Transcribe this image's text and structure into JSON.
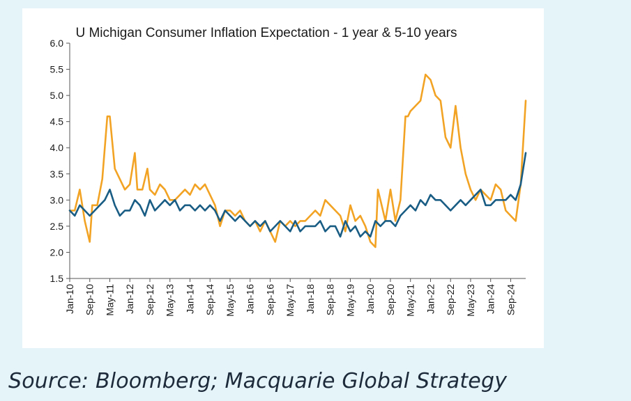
{
  "chart_data": {
    "type": "line",
    "title": "U Michigan Consumer Inflation Expectation - 1 year & 5-10 years",
    "ylim": [
      1.5,
      6.0
    ],
    "yticks": [
      "6.0",
      "5.5",
      "5.0",
      "4.5",
      "4.0",
      "3.5",
      "3.0",
      "2.5",
      "2.0",
      "1.5"
    ],
    "xlim": [
      "2010-01",
      "2025-03"
    ],
    "xticks": [
      "Jan-10",
      "Sep-10",
      "May-11",
      "Jan-12",
      "Sep-12",
      "May-13",
      "Jan-14",
      "Sep-14",
      "May-15",
      "Jan-16",
      "Sep-16",
      "May-17",
      "Jan-18",
      "Sep-18",
      "May-19",
      "Jan-20",
      "Sep-20",
      "May-21",
      "Jan-22",
      "Sep-22",
      "May-23",
      "Jan-24",
      "Sep-24"
    ],
    "series": [
      {
        "color": "#f2a324",
        "x": [
          "2010-01",
          "2010-03",
          "2010-05",
          "2010-07",
          "2010-09",
          "2010-10",
          "2010-12",
          "2011-02",
          "2011-04",
          "2011-05",
          "2011-07",
          "2011-09",
          "2011-11",
          "2012-01",
          "2012-03",
          "2012-04",
          "2012-06",
          "2012-08",
          "2012-09",
          "2012-11",
          "2013-01",
          "2013-03",
          "2013-05",
          "2013-07",
          "2013-09",
          "2013-11",
          "2014-01",
          "2014-03",
          "2014-05",
          "2014-07",
          "2014-09",
          "2014-11",
          "2015-01",
          "2015-03",
          "2015-05",
          "2015-07",
          "2015-09",
          "2015-11",
          "2016-01",
          "2016-03",
          "2016-05",
          "2016-07",
          "2016-09",
          "2016-11",
          "2017-01",
          "2017-03",
          "2017-05",
          "2017-07",
          "2017-09",
          "2017-11",
          "2018-01",
          "2018-03",
          "2018-05",
          "2018-07",
          "2018-09",
          "2018-11",
          "2019-01",
          "2019-03",
          "2019-05",
          "2019-07",
          "2019-09",
          "2019-11",
          "2020-01",
          "2020-03",
          "2020-04",
          "2020-05",
          "2020-07",
          "2020-09",
          "2020-11",
          "2021-01",
          "2021-03",
          "2021-04",
          "2021-05",
          "2021-07",
          "2021-09",
          "2021-11",
          "2022-01",
          "2022-03",
          "2022-05",
          "2022-07",
          "2022-09",
          "2022-11",
          "2023-01",
          "2023-03",
          "2023-05",
          "2023-07",
          "2023-09",
          "2023-11",
          "2024-01",
          "2024-03",
          "2024-05",
          "2024-07",
          "2024-09",
          "2024-11",
          "2025-01",
          "2025-03"
        ],
        "values": [
          2.8,
          2.8,
          3.2,
          2.6,
          2.2,
          2.9,
          2.9,
          3.4,
          4.6,
          4.6,
          3.6,
          3.4,
          3.2,
          3.3,
          3.9,
          3.2,
          3.2,
          3.6,
          3.2,
          3.1,
          3.3,
          3.2,
          3.0,
          3.0,
          3.1,
          3.2,
          3.1,
          3.3,
          3.2,
          3.3,
          3.1,
          2.9,
          2.5,
          2.8,
          2.8,
          2.7,
          2.8,
          2.6,
          2.5,
          2.6,
          2.4,
          2.6,
          2.4,
          2.2,
          2.6,
          2.5,
          2.6,
          2.5,
          2.6,
          2.6,
          2.7,
          2.8,
          2.7,
          3.0,
          2.9,
          2.8,
          2.7,
          2.4,
          2.9,
          2.6,
          2.7,
          2.5,
          2.2,
          2.1,
          3.2,
          3.0,
          2.6,
          3.2,
          2.6,
          3.0,
          4.6,
          4.6,
          4.7,
          4.8,
          4.9,
          5.4,
          5.3,
          5.0,
          4.9,
          4.2,
          4.0,
          4.8,
          4.0,
          3.5,
          3.2,
          3.0,
          3.2,
          3.1,
          3.0,
          3.3,
          3.2,
          2.8,
          2.7,
          2.6,
          3.3,
          4.9
        ]
      },
      {
        "color": "#1a5d84",
        "x": [
          "2010-01",
          "2010-03",
          "2010-05",
          "2010-07",
          "2010-09",
          "2010-11",
          "2011-01",
          "2011-03",
          "2011-05",
          "2011-07",
          "2011-09",
          "2011-11",
          "2012-01",
          "2012-03",
          "2012-05",
          "2012-07",
          "2012-09",
          "2012-11",
          "2013-01",
          "2013-03",
          "2013-05",
          "2013-07",
          "2013-09",
          "2013-11",
          "2014-01",
          "2014-03",
          "2014-05",
          "2014-07",
          "2014-09",
          "2014-11",
          "2015-01",
          "2015-03",
          "2015-05",
          "2015-07",
          "2015-09",
          "2015-11",
          "2016-01",
          "2016-03",
          "2016-05",
          "2016-07",
          "2016-09",
          "2016-11",
          "2017-01",
          "2017-03",
          "2017-05",
          "2017-07",
          "2017-09",
          "2017-11",
          "2018-01",
          "2018-03",
          "2018-05",
          "2018-07",
          "2018-09",
          "2018-11",
          "2019-01",
          "2019-03",
          "2019-05",
          "2019-07",
          "2019-09",
          "2019-11",
          "2020-01",
          "2020-03",
          "2020-05",
          "2020-07",
          "2020-09",
          "2020-11",
          "2021-01",
          "2021-03",
          "2021-05",
          "2021-07",
          "2021-09",
          "2021-11",
          "2022-01",
          "2022-03",
          "2022-05",
          "2022-07",
          "2022-09",
          "2022-11",
          "2023-01",
          "2023-03",
          "2023-05",
          "2023-07",
          "2023-09",
          "2023-11",
          "2024-01",
          "2024-03",
          "2024-05",
          "2024-07",
          "2024-09",
          "2024-11",
          "2025-01",
          "2025-03"
        ],
        "values": [
          2.8,
          2.7,
          2.9,
          2.8,
          2.7,
          2.8,
          2.9,
          3.0,
          3.2,
          2.9,
          2.7,
          2.8,
          2.8,
          3.0,
          2.9,
          2.7,
          3.0,
          2.8,
          2.9,
          3.0,
          2.9,
          3.0,
          2.8,
          2.9,
          2.9,
          2.8,
          2.9,
          2.8,
          2.9,
          2.8,
          2.6,
          2.8,
          2.7,
          2.6,
          2.7,
          2.6,
          2.5,
          2.6,
          2.5,
          2.6,
          2.4,
          2.5,
          2.6,
          2.5,
          2.4,
          2.6,
          2.4,
          2.5,
          2.5,
          2.5,
          2.6,
          2.4,
          2.5,
          2.5,
          2.3,
          2.6,
          2.4,
          2.5,
          2.3,
          2.4,
          2.3,
          2.6,
          2.5,
          2.6,
          2.6,
          2.5,
          2.7,
          2.8,
          2.9,
          2.8,
          3.0,
          2.9,
          3.1,
          3.0,
          3.0,
          2.9,
          2.8,
          2.9,
          3.0,
          2.9,
          3.0,
          3.1,
          3.2,
          2.9,
          2.9,
          3.0,
          3.0,
          3.0,
          3.1,
          3.0,
          3.3,
          3.9
        ]
      }
    ],
    "grid": false,
    "legend": "none"
  },
  "source": "Source: Bloomberg; Macquarie Global Strategy"
}
